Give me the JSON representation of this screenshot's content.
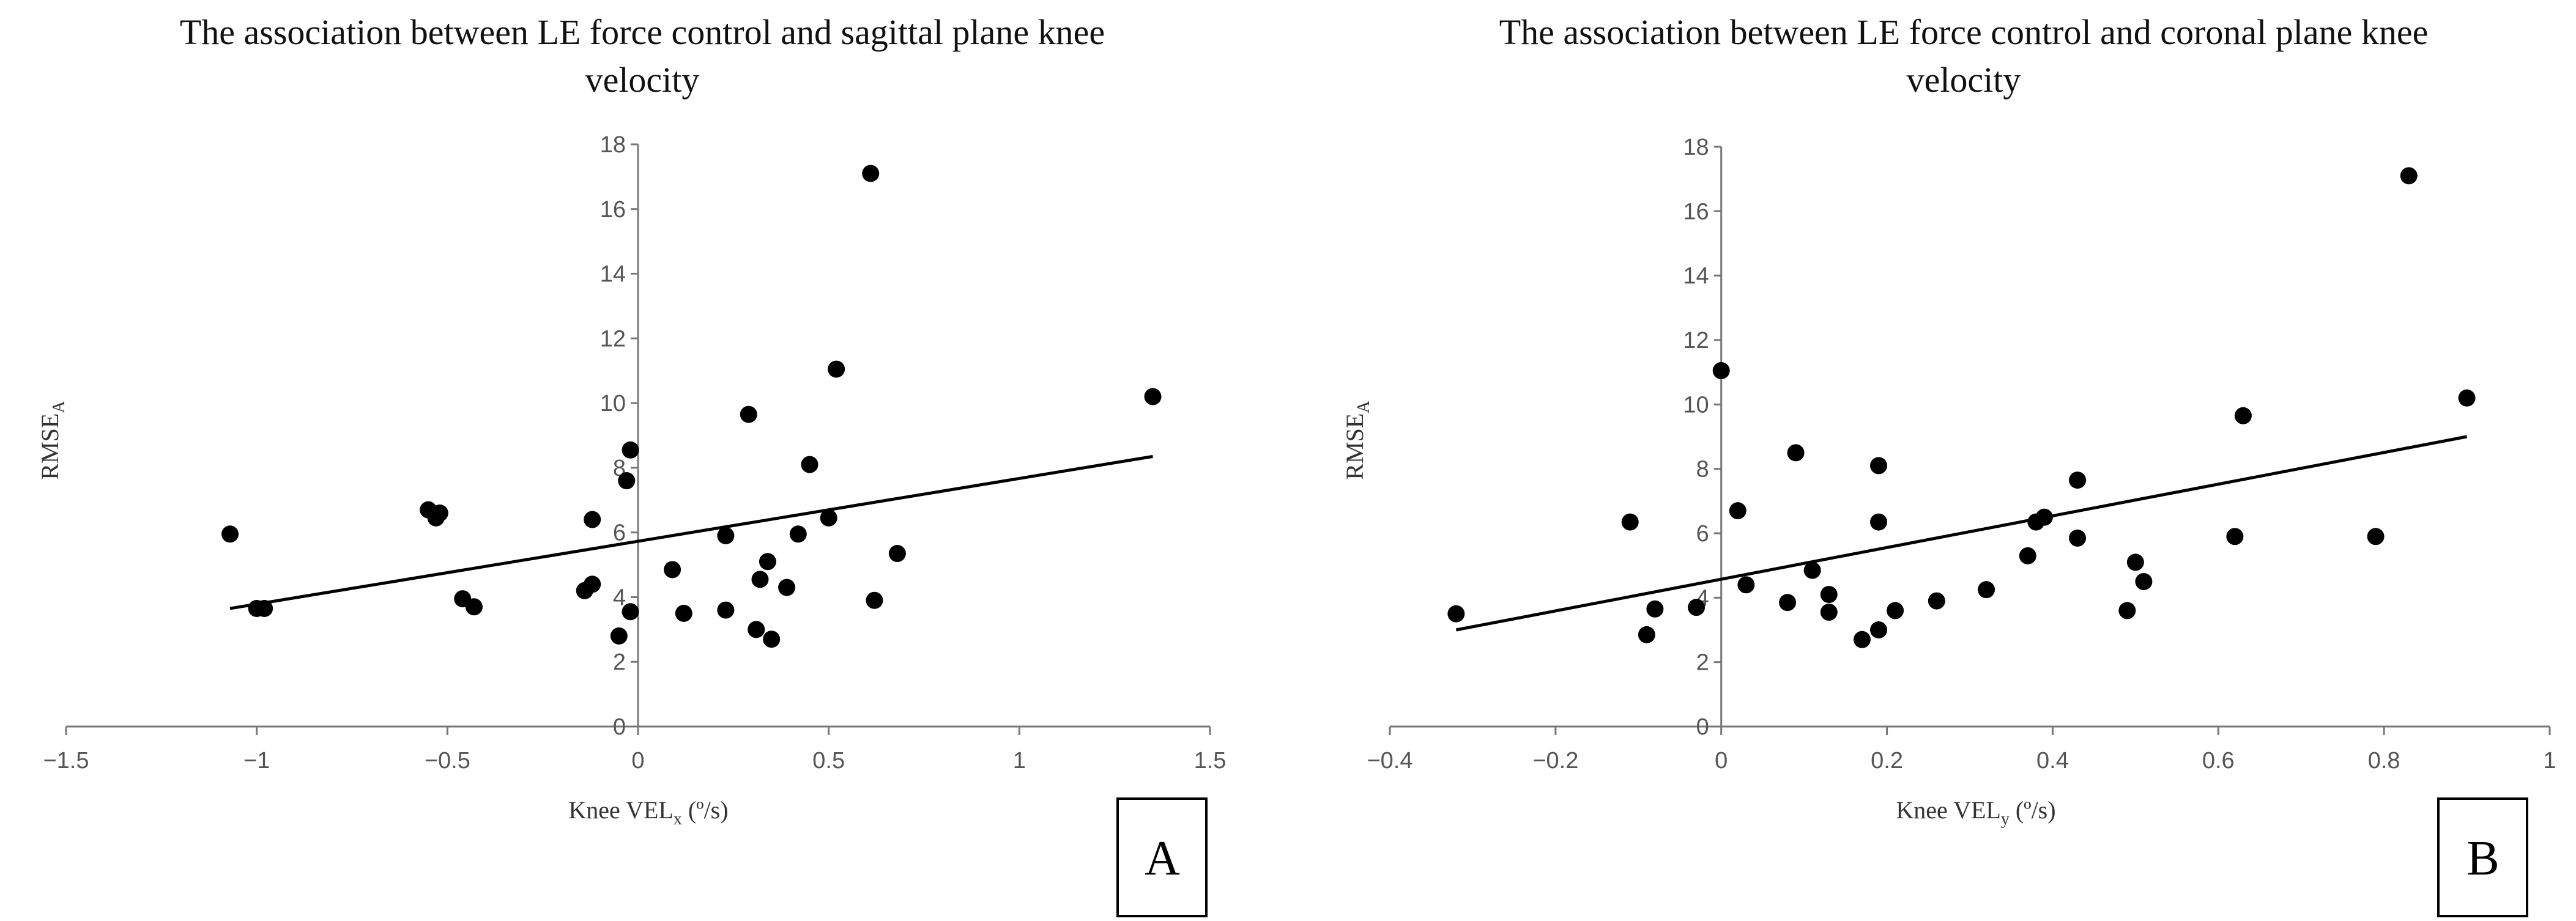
{
  "chart_data": [
    {
      "type": "scatter",
      "panel_label": "A",
      "title_lines": [
        "The association between LE force control and sagittal plane knee",
        "velocity"
      ],
      "xlabel": {
        "base": "Knee VEL",
        "sub": "x",
        "suffix": " (º/s)"
      },
      "ylabel": {
        "base": "RMSE",
        "sub": "A"
      },
      "xlim": [
        -1.5,
        1.5
      ],
      "ylim": [
        0,
        18
      ],
      "xticks": [
        -1.5,
        -1,
        -0.5,
        0,
        0.5,
        1,
        1.5
      ],
      "xtick_labels": [
        "−1.5",
        "−1",
        "−0.5",
        "0",
        "0.5",
        "1",
        "1.5"
      ],
      "yticks": [
        0,
        2,
        4,
        6,
        8,
        10,
        12,
        14,
        16,
        18
      ],
      "ytick_labels": [
        "0",
        "2",
        "4",
        "6",
        "8",
        "10",
        "12",
        "14",
        "16",
        "18"
      ],
      "points": [
        [
          -1.07,
          5.95
        ],
        [
          -1.0,
          3.65
        ],
        [
          -0.98,
          3.65
        ],
        [
          -0.55,
          6.7
        ],
        [
          -0.53,
          6.45
        ],
        [
          -0.52,
          6.6
        ],
        [
          -0.46,
          3.95
        ],
        [
          -0.43,
          3.7
        ],
        [
          -0.14,
          4.2
        ],
        [
          -0.12,
          6.4
        ],
        [
          -0.12,
          4.4
        ],
        [
          -0.03,
          7.6
        ],
        [
          -0.05,
          2.8
        ],
        [
          -0.02,
          8.55
        ],
        [
          -0.02,
          3.55
        ],
        [
          0.09,
          4.85
        ],
        [
          0.12,
          3.5
        ],
        [
          0.23,
          5.9
        ],
        [
          0.23,
          3.6
        ],
        [
          0.29,
          9.65
        ],
        [
          0.31,
          3.0
        ],
        [
          0.32,
          4.55
        ],
        [
          0.34,
          5.1
        ],
        [
          0.35,
          2.7
        ],
        [
          0.39,
          4.3
        ],
        [
          0.42,
          5.95
        ],
        [
          0.45,
          8.1
        ],
        [
          0.5,
          6.45
        ],
        [
          0.52,
          11.05
        ],
        [
          0.61,
          17.1
        ],
        [
          0.62,
          3.9
        ],
        [
          0.68,
          5.35
        ],
        [
          1.35,
          10.2
        ]
      ],
      "trendline": {
        "x": [
          -1.07,
          1.35
        ],
        "y": [
          3.65,
          8.35
        ]
      }
    },
    {
      "type": "scatter",
      "panel_label": "B",
      "title_lines": [
        "The association between LE force control and coronal plane knee",
        "velocity"
      ],
      "xlabel": {
        "base": "Knee VEL",
        "sub": "y",
        "suffix": " (º/s)"
      },
      "ylabel": {
        "base": "RMSE",
        "sub": "A"
      },
      "xlim": [
        -0.4,
        1.0
      ],
      "ylim": [
        0,
        18
      ],
      "xticks": [
        -0.4,
        -0.2,
        0,
        0.2,
        0.4,
        0.6,
        0.8,
        1
      ],
      "xtick_labels": [
        "−0.4",
        "−0.2",
        "0",
        "0.2",
        "0.4",
        "0.6",
        "0.8",
        "1"
      ],
      "yticks": [
        0,
        2,
        4,
        6,
        8,
        10,
        12,
        14,
        16,
        18
      ],
      "ytick_labels": [
        "0",
        "2",
        "4",
        "6",
        "8",
        "10",
        "12",
        "14",
        "16",
        "18"
      ],
      "points": [
        [
          -0.32,
          3.5
        ],
        [
          -0.11,
          6.35
        ],
        [
          -0.09,
          2.85
        ],
        [
          -0.08,
          3.65
        ],
        [
          -0.03,
          3.7
        ],
        [
          0.0,
          11.05
        ],
        [
          0.02,
          6.7
        ],
        [
          0.03,
          4.4
        ],
        [
          0.08,
          3.85
        ],
        [
          0.09,
          8.5
        ],
        [
          0.11,
          4.85
        ],
        [
          0.13,
          4.1
        ],
        [
          0.13,
          3.55
        ],
        [
          0.17,
          2.7
        ],
        [
          0.19,
          8.1
        ],
        [
          0.19,
          6.35
        ],
        [
          0.19,
          3.0
        ],
        [
          0.21,
          3.6
        ],
        [
          0.26,
          3.9
        ],
        [
          0.32,
          4.25
        ],
        [
          0.37,
          5.3
        ],
        [
          0.38,
          6.35
        ],
        [
          0.39,
          6.5
        ],
        [
          0.43,
          7.65
        ],
        [
          0.43,
          5.85
        ],
        [
          0.49,
          3.6
        ],
        [
          0.5,
          5.1
        ],
        [
          0.51,
          4.5
        ],
        [
          0.62,
          5.9
        ],
        [
          0.63,
          9.65
        ],
        [
          0.79,
          5.9
        ],
        [
          0.83,
          17.1
        ],
        [
          0.9,
          10.2
        ]
      ],
      "trendline": {
        "x": [
          -0.32,
          0.9
        ],
        "y": [
          3.0,
          9.0
        ]
      }
    }
  ]
}
